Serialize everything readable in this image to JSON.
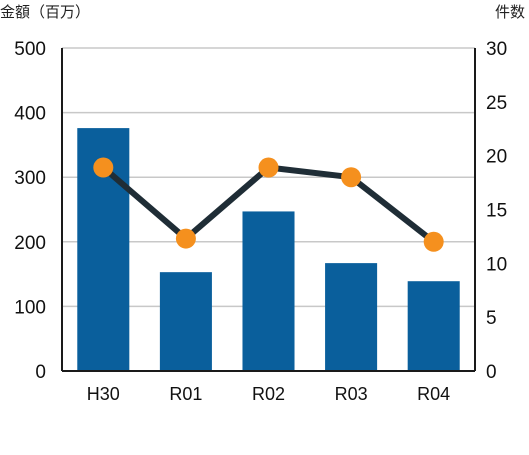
{
  "chart_data": {
    "type": "bar",
    "title": "",
    "categories": [
      "H30",
      "R01",
      "R02",
      "R03",
      "R04"
    ],
    "y_left": {
      "label": "金額（百万）",
      "ticks": [
        0,
        100,
        200,
        300,
        400,
        500
      ],
      "range": [
        0,
        500
      ]
    },
    "y_right": {
      "label": "件数",
      "ticks": [
        0,
        5,
        10,
        15,
        20,
        25,
        30
      ],
      "range": [
        0,
        30
      ]
    },
    "series": [
      {
        "type": "bar",
        "axis": "left",
        "color": "#0a5f9c",
        "values": [
          376,
          153,
          247,
          167,
          139
        ]
      },
      {
        "type": "line",
        "axis": "right",
        "line_color": "#1f2d36",
        "marker_color": "#f5901e",
        "values": [
          18.9,
          12.3,
          18.9,
          18.0,
          12.0
        ]
      }
    ],
    "grid": true,
    "legend": "none"
  }
}
